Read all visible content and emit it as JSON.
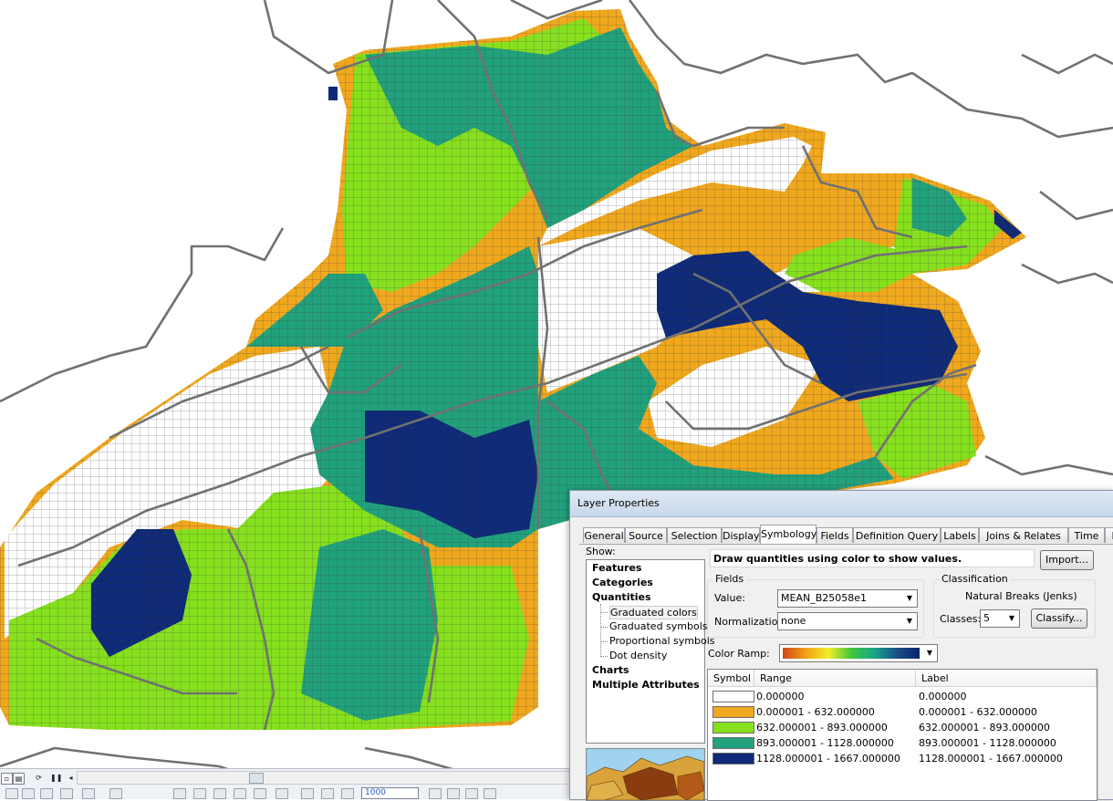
{
  "dialog": {
    "title": "Layer Properties",
    "tabs": [
      "General",
      "Source",
      "Selection",
      "Display",
      "Symbology",
      "Fields",
      "Definition Query",
      "Labels",
      "Joins & Relates",
      "Time",
      "HT"
    ],
    "active_tab": "Symbology",
    "show_label": "Show:",
    "show_items": [
      {
        "label": "Features",
        "bold": true
      },
      {
        "label": "Categories",
        "bold": true
      },
      {
        "label": "Quantities",
        "bold": true
      },
      {
        "label": "Graduated colors",
        "bold": false
      },
      {
        "label": "Graduated symbols",
        "bold": false
      },
      {
        "label": "Proportional symbols",
        "bold": false
      },
      {
        "label": "Dot density",
        "bold": false
      },
      {
        "label": "Charts",
        "bold": true
      },
      {
        "label": "Multiple Attributes",
        "bold": true
      }
    ],
    "selected_show_item": "Graduated colors",
    "headline": "Draw quantities using color to show values.",
    "import_button": "Import...",
    "fields_group": "Fields",
    "value_label": "Value:",
    "value_field": "MEAN_B25058e1",
    "normalization_label": "Normalization:",
    "normalization_field": "none",
    "classification_group": "Classification",
    "classification_method": "Natural Breaks (Jenks)",
    "classes_label": "Classes:",
    "classes_value": "5",
    "classify_button": "Classify...",
    "color_ramp_label": "Color Ramp:",
    "color_ramp_colors": [
      "#d4461b",
      "#f0a015",
      "#f2ee2a",
      "#3fc83a",
      "#1aa58a",
      "#1a4f86",
      "#0b2470"
    ],
    "table_headers": [
      "Symbol",
      "Range",
      "Label"
    ],
    "classes": [
      {
        "color": "#ffffff",
        "range": "0.000000",
        "label": "0.000000"
      },
      {
        "color": "#f0a81e",
        "range": "0.000001 - 632.000000",
        "label": "0.000001 - 632.000000"
      },
      {
        "color": "#86e01e",
        "range": "632.000001 - 893.000000",
        "label": "632.000001 - 893.000000"
      },
      {
        "color": "#21a17c",
        "range": "893.000001 - 1128.000000",
        "label": "893.000001 - 1128.000000"
      },
      {
        "color": "#0e2a78",
        "range": "1128.000001 - 1667.000000",
        "label": "1128.000001 - 1667.000000"
      }
    ]
  },
  "map": {
    "background": "#ffffff",
    "grid_line_color": "#3e3e3e",
    "boundary_color": "#717171"
  },
  "toolbar": {
    "zoom_value": "1000"
  }
}
